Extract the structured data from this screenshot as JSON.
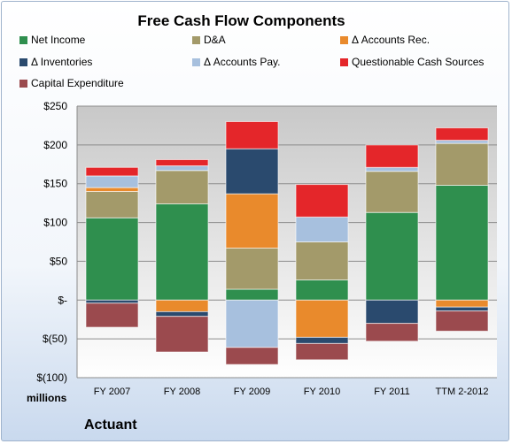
{
  "chart_data": {
    "type": "bar",
    "stacked": true,
    "title": "Free Cash Flow Components",
    "categories": [
      "FY 2007",
      "FY 2008",
      "FY 2009",
      "FY 2010",
      "FY 2011",
      "TTM 2-2012"
    ],
    "y_ticks": [
      "$250",
      "$200",
      "$150",
      "$100",
      "$50",
      "$-",
      "$(50)",
      "$(100)"
    ],
    "y_tick_values": [
      250,
      200,
      150,
      100,
      50,
      0,
      -50,
      -100
    ],
    "ylim": [
      -100,
      250
    ],
    "grid": true,
    "legend_placement": "top",
    "unit_label": "millions",
    "series": [
      {
        "name": "Net Income",
        "color": "#2f8f4e",
        "values": [
          106,
          124,
          14,
          26,
          113,
          148
        ]
      },
      {
        "name": "D&A",
        "color": "#a39a6a",
        "values": [
          34,
          43,
          53,
          49,
          53,
          54
        ]
      },
      {
        "name": "Δ Accounts Rec.",
        "color": "#e98a2c",
        "values": [
          5,
          -15,
          70,
          -48,
          0,
          -9
        ]
      },
      {
        "name": "Δ Inventories",
        "color": "#2a4a6e",
        "values": [
          -4,
          -6,
          58,
          -8,
          -30,
          -5
        ]
      },
      {
        "name": "Δ Accounts Pay.",
        "color": "#a7c0de",
        "values": [
          15,
          6,
          -61,
          32,
          5,
          4
        ]
      },
      {
        "name": "Questionable Cash Sources",
        "color": "#e4262a",
        "values": [
          11,
          8,
          35,
          42,
          29,
          16
        ]
      },
      {
        "name": "Capital Expenditure",
        "color": "#9b4a4e",
        "values": [
          -31,
          -46,
          -22,
          -21,
          -23,
          -26
        ]
      }
    ]
  },
  "footer": {
    "millions": "millions",
    "company": "Actuant"
  }
}
